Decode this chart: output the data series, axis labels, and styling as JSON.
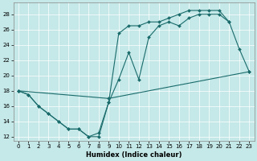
{
  "xlabel": "Humidex (Indice chaleur)",
  "background_color": "#c5e8e8",
  "line_color": "#1a6b6b",
  "xlim": [
    -0.5,
    23.5
  ],
  "ylim": [
    11.5,
    29.5
  ],
  "xticks": [
    0,
    1,
    2,
    3,
    4,
    5,
    6,
    7,
    8,
    9,
    10,
    11,
    12,
    13,
    14,
    15,
    16,
    17,
    18,
    19,
    20,
    21,
    22,
    23
  ],
  "yticks": [
    12,
    14,
    16,
    18,
    20,
    22,
    24,
    26,
    28
  ],
  "line1_x": [
    0,
    1,
    2,
    3,
    4,
    5,
    6,
    7,
    8,
    9,
    10,
    11,
    12,
    13,
    14,
    15,
    16,
    17,
    18,
    19,
    20,
    21,
    22,
    23
  ],
  "line1_y": [
    18,
    17.5,
    16,
    15,
    14,
    13,
    13,
    12,
    12,
    16.5,
    25.5,
    26.5,
    26.5,
    27,
    27,
    27.5,
    28,
    28.5,
    28.5,
    28.5,
    28.5,
    27,
    null,
    null
  ],
  "line2_x": [
    0,
    1,
    2,
    3,
    4,
    5,
    6,
    7,
    8,
    9,
    10,
    11,
    12,
    13,
    14,
    15,
    16,
    17,
    18,
    19,
    20,
    21,
    22,
    23
  ],
  "line2_y": [
    18,
    17.5,
    16,
    15,
    14,
    13,
    13,
    12,
    12.5,
    16.5,
    19.5,
    23,
    19.5,
    25,
    26.5,
    27,
    26.5,
    27.5,
    28,
    28,
    28,
    27,
    23.5,
    20.5
  ],
  "line3_x": [
    0,
    9,
    23
  ],
  "line3_y": [
    18,
    17,
    20.5
  ],
  "marker": "D",
  "markersize": 2.0,
  "linewidth": 0.8,
  "xlabel_fontsize": 6.0,
  "tick_labelsize": 5.0
}
